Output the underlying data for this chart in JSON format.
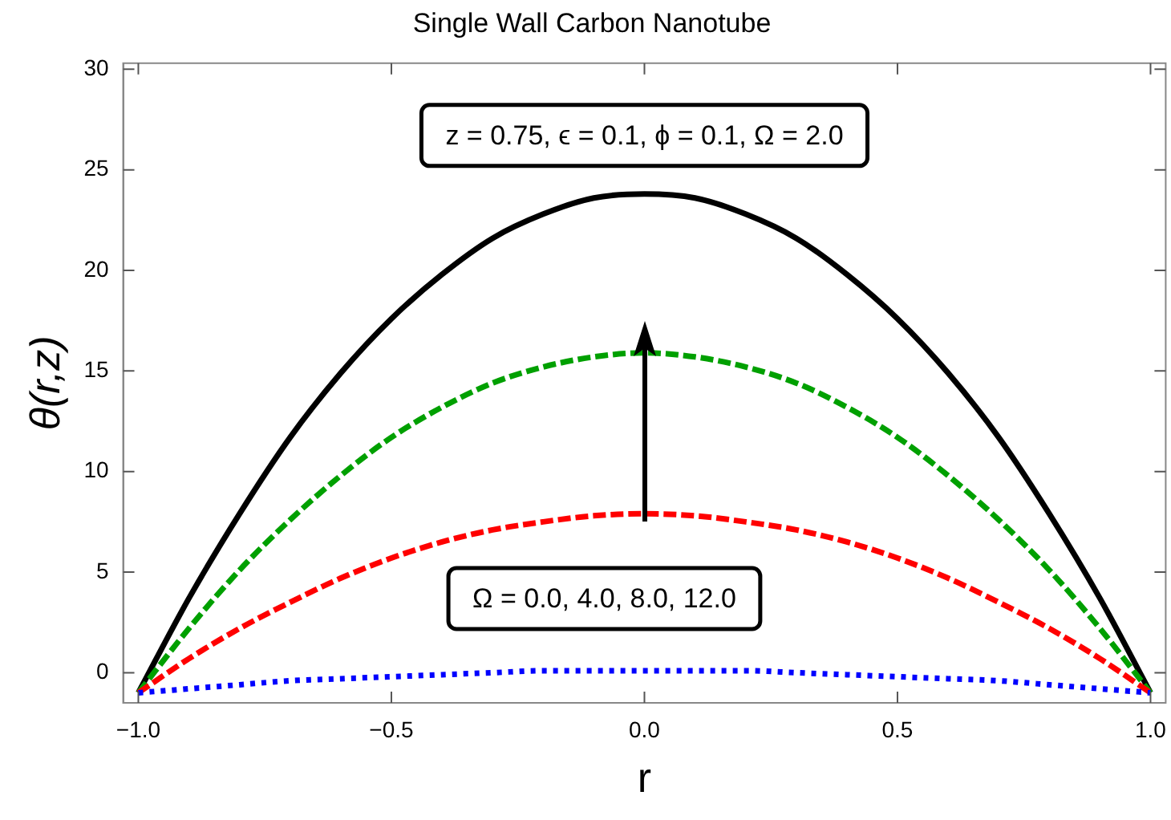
{
  "chart_data": {
    "type": "line",
    "title": "Single Wall Carbon Nanotube",
    "xlabel": "r",
    "ylabel": "θ(r,z)",
    "x": [
      -1,
      -0.9,
      -0.8,
      -0.7,
      -0.6,
      -0.5,
      -0.4,
      -0.3,
      -0.2,
      -0.1,
      0,
      0.1,
      0.2,
      0.3,
      0.4,
      0.5,
      0.6,
      0.7,
      0.8,
      0.9,
      1
    ],
    "series": [
      {
        "color": "#0000ff",
        "line_style": "dotted",
        "values": [
          -1,
          -0.8,
          -0.6,
          -0.4,
          -0.3,
          -0.2,
          -0.1,
          0,
          0.1,
          0.1,
          0.1,
          0.1,
          0.1,
          0,
          -0.1,
          -0.2,
          -0.3,
          -0.4,
          -0.6,
          -0.8,
          -1
        ]
      },
      {
        "color": "#ff0000",
        "line_style": "dashed",
        "values": [
          -1,
          0.7,
          2.2,
          3.5,
          4.7,
          5.7,
          6.5,
          7.1,
          7.5,
          7.8,
          7.9,
          7.8,
          7.5,
          7.1,
          6.5,
          5.7,
          4.7,
          3.5,
          2.2,
          0.7,
          -1
        ]
      },
      {
        "color": "#00a000",
        "line_style": "dashed",
        "values": [
          -1,
          2.2,
          5.1,
          7.6,
          9.8,
          11.7,
          13.2,
          14.4,
          15.2,
          15.7,
          15.9,
          15.7,
          15.2,
          14.4,
          13.2,
          11.7,
          9.8,
          7.6,
          5.1,
          2.2,
          -1
        ]
      },
      {
        "color": "#000000",
        "line_style": "solid",
        "values": [
          -1,
          3.7,
          7.9,
          11.7,
          14.9,
          17.6,
          19.8,
          21.6,
          22.8,
          23.6,
          23.8,
          23.6,
          22.8,
          21.6,
          19.8,
          17.6,
          14.9,
          11.7,
          7.9,
          3.7,
          -1
        ]
      }
    ],
    "xlim": [
      -1.03,
      1.03
    ],
    "xticks": [
      {
        "value": -1,
        "label": "−1.0"
      },
      {
        "value": -0.5,
        "label": "−0.5"
      },
      {
        "value": 0,
        "label": "0.0"
      },
      {
        "value": 0.5,
        "label": "0.5"
      },
      {
        "value": 1,
        "label": "1.0"
      }
    ],
    "ylim": [
      -1.5,
      30.3
    ],
    "yticks": [
      0,
      5,
      10,
      15,
      20,
      25,
      30
    ],
    "marker": "none",
    "legend": false,
    "annotations": [
      "z = 0.75, ϵ = 0.1, ϕ = 0.1, Ω = 2.0",
      "Ω = 0.0, 4.0, 8.0, 12.0"
    ]
  }
}
